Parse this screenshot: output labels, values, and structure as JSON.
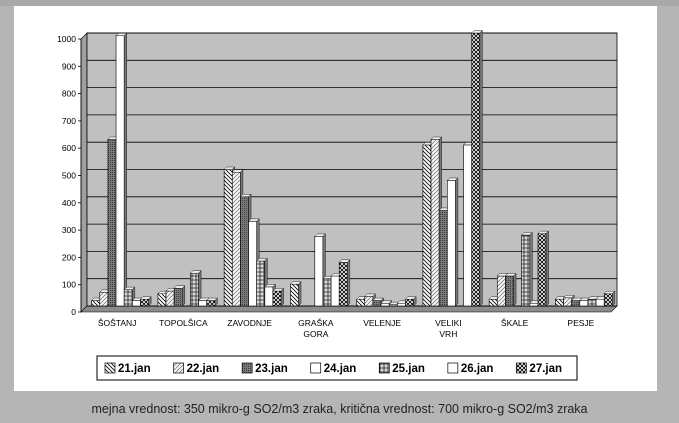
{
  "caption": "mejna vrednost: 350 mikro-g SO2/m3 zraka, kritična vrednost: 700 mikro-g SO2/m3 zraka",
  "chart_data": {
    "type": "bar",
    "categories": [
      "ŠOŠTANJ",
      "TOPOLŠICA",
      "ZAVODNJE",
      "GRAŠKA GORA",
      "VELENJE",
      "VELIKI VRH",
      "ŠKALE",
      "PESJE"
    ],
    "series": [
      {
        "name": "21.jan",
        "values": [
          20,
          45,
          500,
          80,
          25,
          590,
          25,
          25
        ]
      },
      {
        "name": "22.jan",
        "values": [
          50,
          55,
          490,
          0,
          35,
          610,
          110,
          30
        ]
      },
      {
        "name": "23.jan",
        "values": [
          610,
          65,
          400,
          0,
          20,
          350,
          110,
          20
        ]
      },
      {
        "name": "24.jan",
        "values": [
          990,
          0,
          310,
          255,
          10,
          460,
          0,
          20
        ]
      },
      {
        "name": "25.jan",
        "values": [
          60,
          120,
          165,
          100,
          5,
          0,
          260,
          25
        ]
      },
      {
        "name": "26.jan",
        "values": [
          20,
          20,
          70,
          110,
          10,
          590,
          10,
          25
        ]
      },
      {
        "name": "27.jan",
        "values": [
          25,
          20,
          55,
          160,
          25,
          1000,
          265,
          45
        ]
      }
    ],
    "ylim": [
      0,
      1000
    ],
    "yticks": [
      0,
      100,
      200,
      300,
      400,
      500,
      600,
      700,
      800,
      900,
      1000
    ],
    "grid": true,
    "legend": "bottom",
    "colors": {
      "plot_bg": "#c0c0c0",
      "grid": "#000000",
      "bar_stroke": "#000000",
      "series": [
        "#ffffff",
        "#f2f2f2",
        "#6b6b6b",
        "#ffffff",
        "#9a9a9a",
        "#ffffff",
        "#4c4c4c"
      ]
    }
  }
}
